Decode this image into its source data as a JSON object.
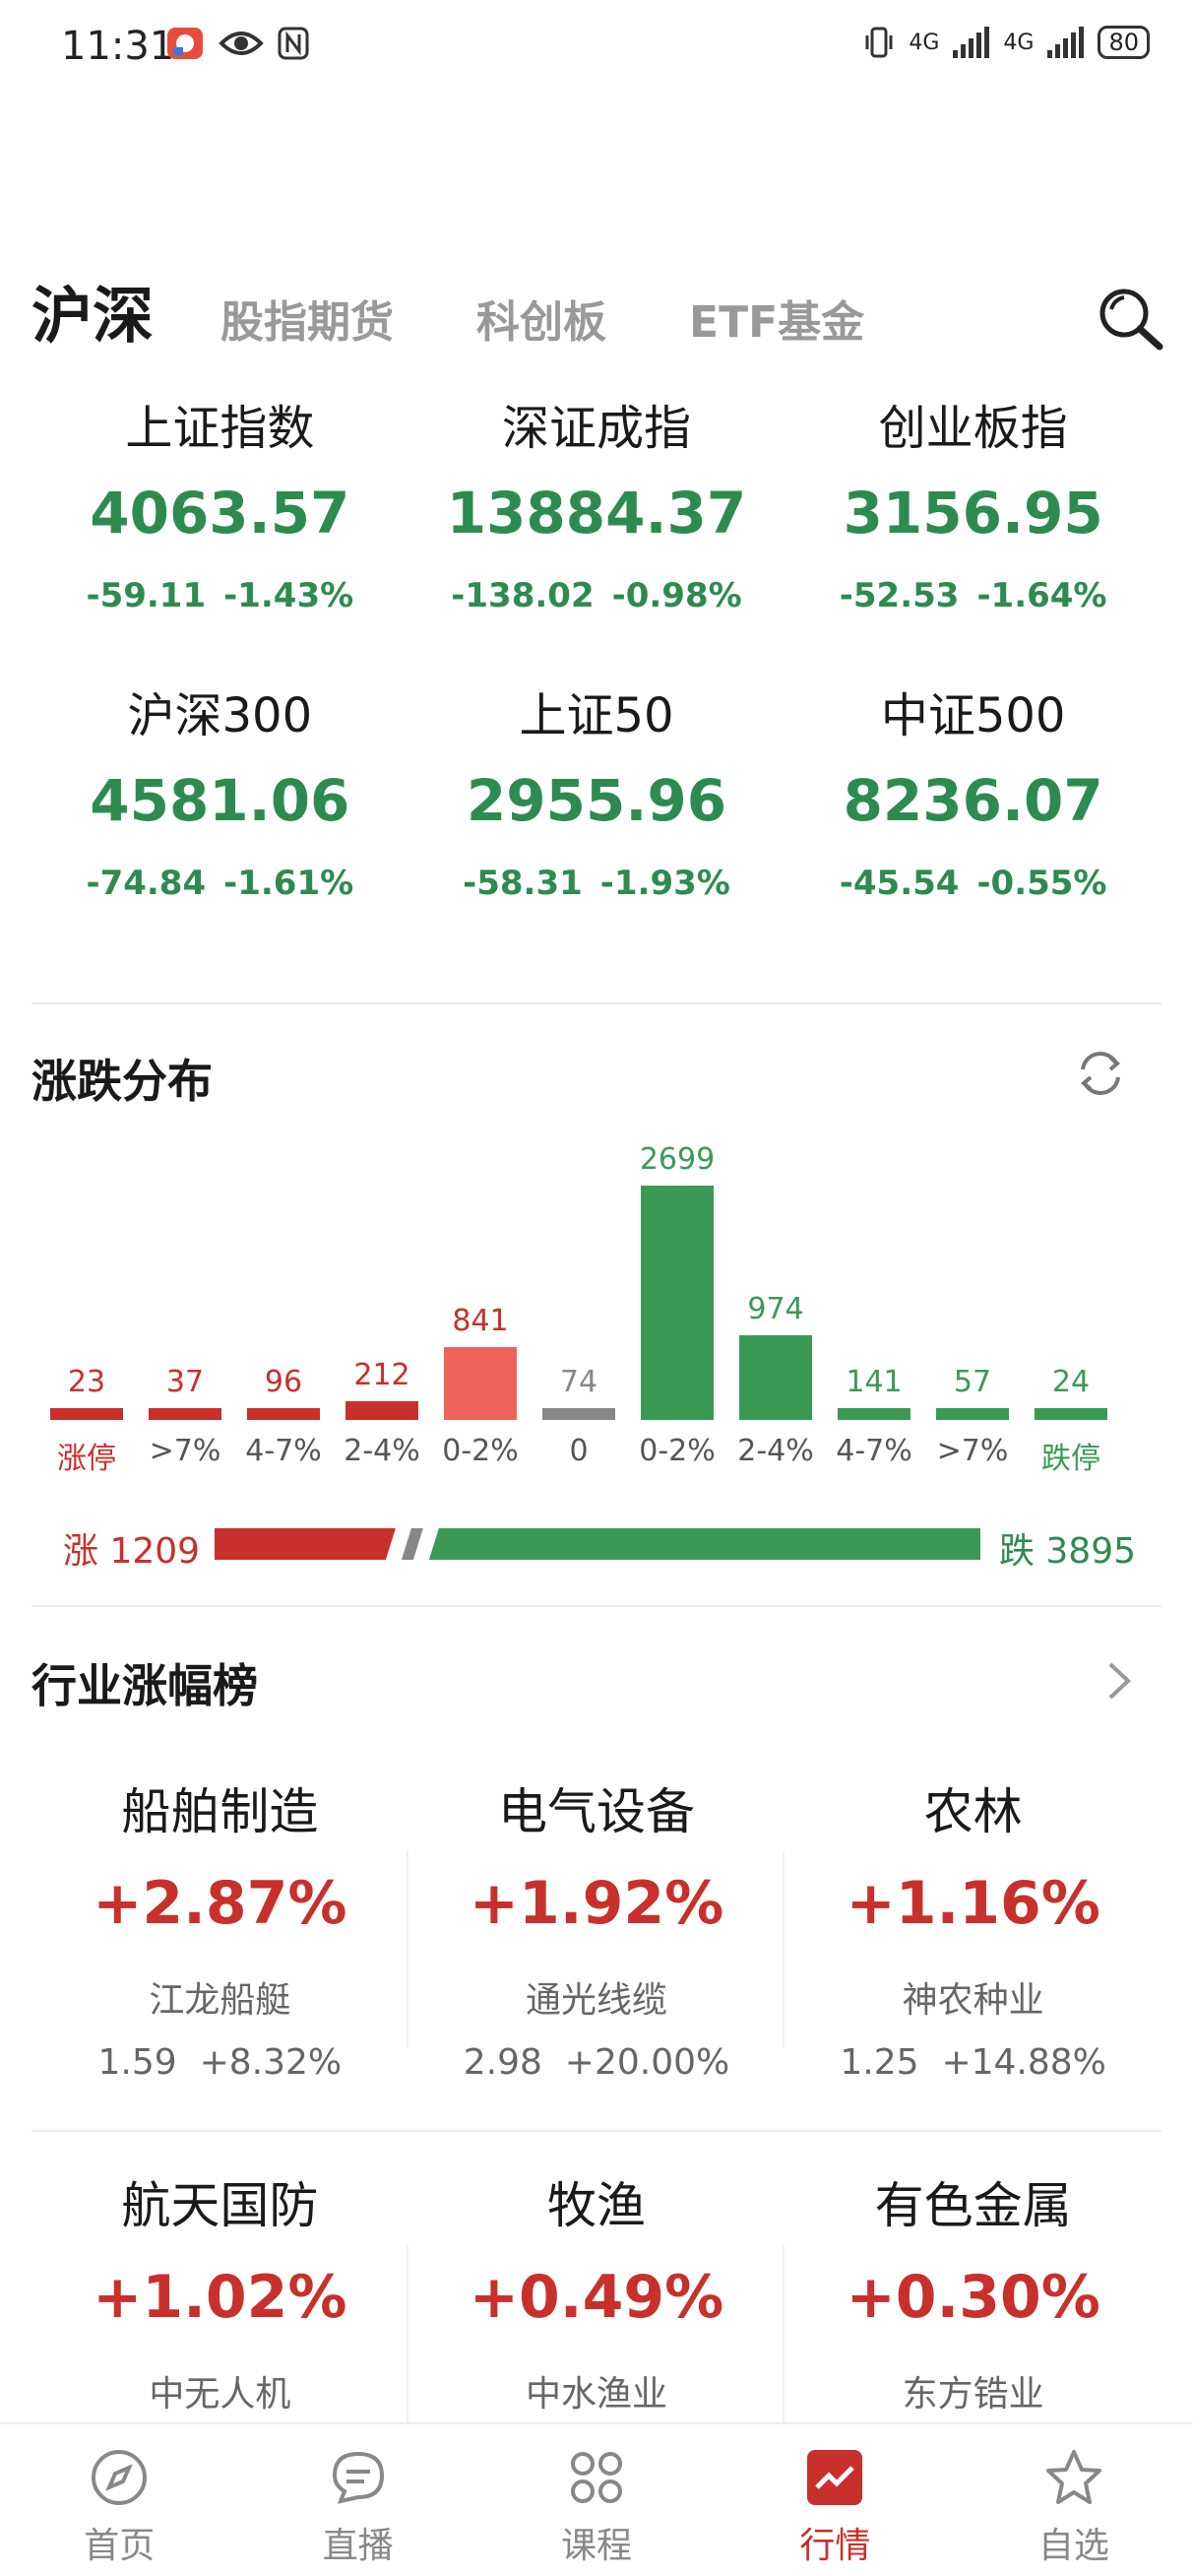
{
  "status_bar": {
    "time": "11:31",
    "network_1": "4G",
    "network_2": "4G",
    "battery": "80"
  },
  "tabs": [
    {
      "label": "沪深",
      "active": true
    },
    {
      "label": "股指期货",
      "active": false
    },
    {
      "label": "科创板",
      "active": false
    },
    {
      "label": "ETF基金",
      "active": false
    }
  ],
  "indices": [
    {
      "name": "上证指数",
      "value": "4063.57",
      "change": "-59.11",
      "pct": "-1.43%"
    },
    {
      "name": "深证成指",
      "value": "13884.37",
      "change": "-138.02",
      "pct": "-0.98%"
    },
    {
      "name": "创业板指",
      "value": "3156.95",
      "change": "-52.53",
      "pct": "-1.64%"
    },
    {
      "name": "沪深300",
      "value": "4581.06",
      "change": "-74.84",
      "pct": "-1.61%"
    },
    {
      "name": "上证50",
      "value": "2955.96",
      "change": "-58.31",
      "pct": "-1.93%"
    },
    {
      "name": "中证500",
      "value": "8236.07",
      "change": "-45.54",
      "pct": "-0.55%"
    }
  ],
  "distribution": {
    "title": "涨跌分布",
    "colors": {
      "up": "#c8302b",
      "up_light": "#f0635a",
      "flat": "#888888",
      "down": "#3a9a55"
    },
    "buckets": [
      {
        "label": "涨停",
        "count": 23,
        "dir": "up"
      },
      {
        "label": ">7%",
        "count": 37,
        "dir": "up"
      },
      {
        "label": "4-7%",
        "count": 96,
        "dir": "up"
      },
      {
        "label": "2-4%",
        "count": 212,
        "dir": "up"
      },
      {
        "label": "0-2%",
        "count": 841,
        "dir": "up_light"
      },
      {
        "label": "0",
        "count": 74,
        "dir": "flat"
      },
      {
        "label": "0-2%",
        "count": 2699,
        "dir": "down"
      },
      {
        "label": "2-4%",
        "count": 974,
        "dir": "down"
      },
      {
        "label": "4-7%",
        "count": 141,
        "dir": "down"
      },
      {
        "label": ">7%",
        "count": 57,
        "dir": "down"
      },
      {
        "label": "跌停",
        "count": 24,
        "dir": "down"
      }
    ],
    "up_label": "涨 1209",
    "down_label": "跌 3895",
    "up_total": 1209,
    "down_total": 3895
  },
  "industry": {
    "title": "行业涨幅榜",
    "items": [
      {
        "name": "船舶制造",
        "pct": "+2.87%",
        "stock": "江龙船艇",
        "price": "1.59",
        "stock_pct": "+8.32%"
      },
      {
        "name": "电气设备",
        "pct": "+1.92%",
        "stock": "通光线缆",
        "price": "2.98",
        "stock_pct": "+20.00%"
      },
      {
        "name": "农林",
        "pct": "+1.16%",
        "stock": "神农种业",
        "price": "1.25",
        "stock_pct": "+14.88%"
      },
      {
        "name": "航天国防",
        "pct": "+1.02%",
        "stock": "中无人机",
        "price": "",
        "stock_pct": ""
      },
      {
        "name": "牧渔",
        "pct": "+0.49%",
        "stock": "中水渔业",
        "price": "",
        "stock_pct": ""
      },
      {
        "name": "有色金属",
        "pct": "+0.30%",
        "stock": "东方锆业",
        "price": "",
        "stock_pct": ""
      }
    ]
  },
  "bottom_nav": [
    {
      "label": "首页",
      "icon": "compass-icon",
      "active": false
    },
    {
      "label": "直播",
      "icon": "chat-icon",
      "active": false
    },
    {
      "label": "课程",
      "icon": "grid-icon",
      "active": false
    },
    {
      "label": "行情",
      "icon": "chart-icon",
      "active": true
    },
    {
      "label": "自选",
      "icon": "star-icon",
      "active": false
    }
  ]
}
